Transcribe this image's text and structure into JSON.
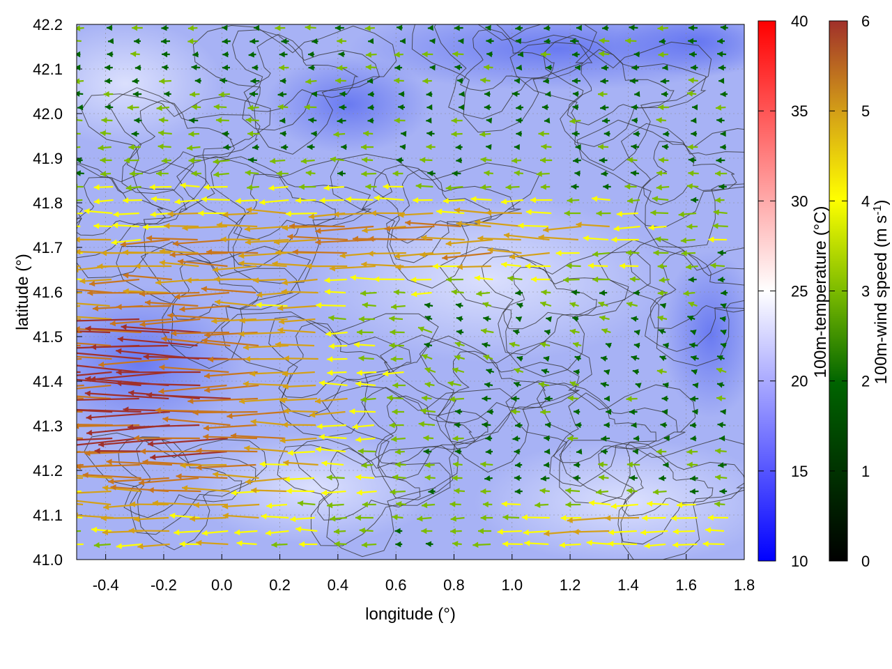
{
  "chart_data": {
    "type": "heatmap",
    "title": "",
    "xlabel": "longitude (°)",
    "ylabel": "latitude (°)",
    "xlim": [
      -0.5,
      1.8
    ],
    "ylim": [
      41.0,
      42.2
    ],
    "xticks": [
      "-0.4",
      "-0.2",
      "0.0",
      "0.2",
      "0.4",
      "0.6",
      "0.8",
      "1.0",
      "1.2",
      "1.4",
      "1.6",
      "1.8"
    ],
    "yticks": [
      "41.0",
      "41.1",
      "41.2",
      "41.3",
      "41.4",
      "41.5",
      "41.6",
      "41.7",
      "41.8",
      "41.9",
      "42.0",
      "42.1",
      "42.2"
    ],
    "grid": true,
    "layers": [
      "100m-temperature field",
      "terrain contours",
      "100m-wind vectors"
    ],
    "temperature_colorbar": {
      "label": "100m-temperature (°C)",
      "range": [
        10,
        40
      ],
      "ticks": [
        "10",
        "15",
        "20",
        "25",
        "30",
        "35",
        "40"
      ],
      "colors": [
        "#0000ff",
        "#ffffff",
        "#ff0000"
      ]
    },
    "wind_colorbar": {
      "label_main": "100m-wind speed (m s",
      "label_sup": "-1",
      "label_end": ")",
      "range": [
        0,
        6
      ],
      "ticks": [
        "0",
        "1",
        "2",
        "3",
        "4",
        "5",
        "6"
      ],
      "colors": [
        "#000000",
        "#006400",
        "#7cbb00",
        "#ffff00",
        "#d4a017",
        "#c8761e",
        "#a0302a"
      ]
    },
    "field_description_values": {
      "background_temperature_approx": 19,
      "wind_direction_general": "easterly (arrows pointing west)",
      "strong_wind_region": "southwest quadrant, speeds ~5-6 m/s",
      "weak_wind_region": "north and central areas, speeds ~1-2 m/s"
    }
  }
}
